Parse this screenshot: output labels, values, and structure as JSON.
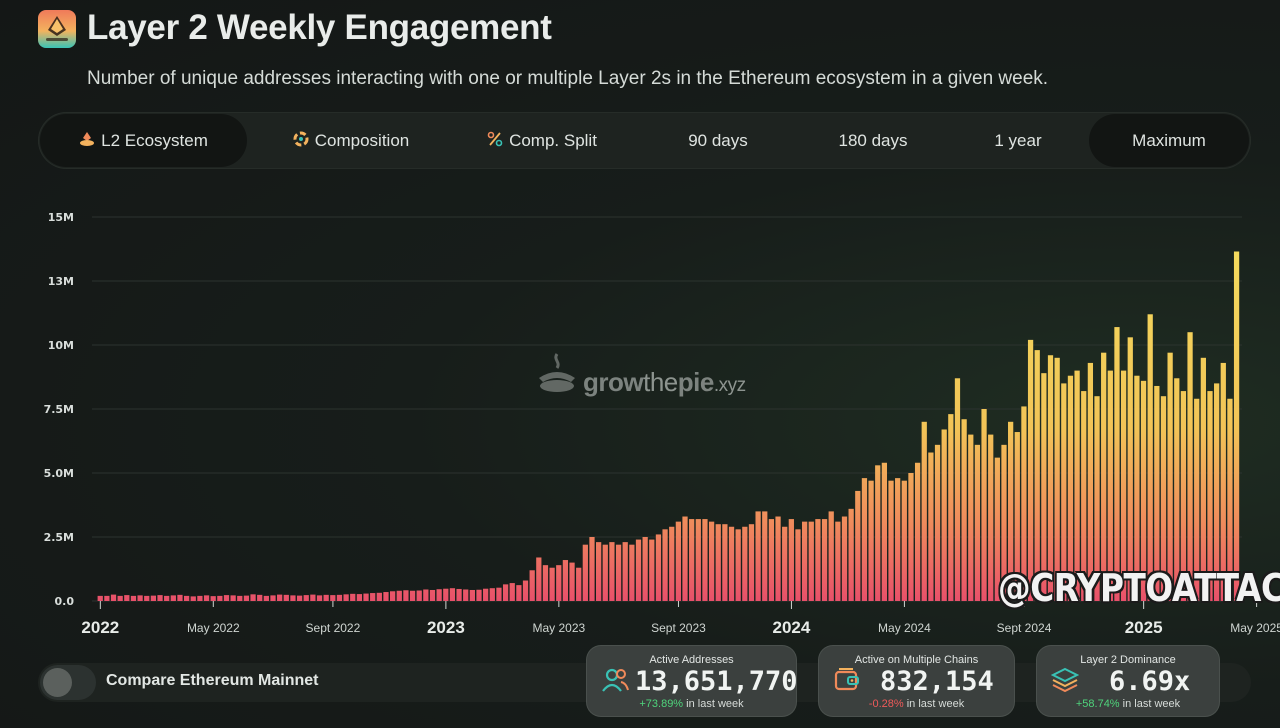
{
  "header": {
    "title": "Layer 2 Weekly Engagement",
    "subtitle": "Number of unique addresses interacting with one or multiple Layer 2s in the Ethereum ecosystem in a given week."
  },
  "tabs": [
    {
      "label": "L2 Ecosystem",
      "icon": "l2-ecosystem-icon",
      "active": true
    },
    {
      "label": "Composition",
      "icon": "composition-icon",
      "active": false
    },
    {
      "label": "Comp. Split",
      "icon": "percent-icon",
      "active": false
    },
    {
      "label": "90 days",
      "active": false
    },
    {
      "label": "180 days",
      "active": false
    },
    {
      "label": "1 year",
      "active": false
    },
    {
      "label": "Maximum",
      "active": true
    }
  ],
  "watermark": {
    "part1": "grow",
    "part2": "the",
    "part3": "pie",
    "part4": ".xyz"
  },
  "overlay_tag": "@CRYPTOATTACK",
  "compare": {
    "label": "Compare Ethereum Mainnet",
    "enabled": false
  },
  "stats": [
    {
      "label": "Active Addresses",
      "value": "13,651,770",
      "change": "+73.89%",
      "suffix": "in last week",
      "icon": "users-icon"
    },
    {
      "label": "Active on Multiple Chains",
      "value": "832,154",
      "change": "-0.28%",
      "suffix": "in last week",
      "icon": "multi-chain-wallet-icon"
    },
    {
      "label": "Layer 2 Dominance",
      "value": "6.69x",
      "change": "+58.74%",
      "suffix": "in last week",
      "icon": "layers-icon"
    }
  ],
  "colors": {
    "bar_top": "#f3d35a",
    "bar_bottom": "#e8506a",
    "grid": "#2c332f",
    "positive": "#4fd47c",
    "negative": "#ef5a5a"
  },
  "chart_data": {
    "type": "bar",
    "title": "Layer 2 Weekly Engagement",
    "ylabel": "Active addresses",
    "ylim": [
      0,
      15000000
    ],
    "y_ticks": [
      0,
      2500000,
      5000000,
      7500000,
      10000000,
      12500000,
      15000000
    ],
    "y_tick_labels": [
      "0.0",
      "2.5M",
      "5.0M",
      "7.5M",
      "10M",
      "13M",
      "15M"
    ],
    "x_range": [
      "2022-01-03",
      "2025-05-12"
    ],
    "x_ticks": [
      {
        "label": "2022",
        "week": 0,
        "major": true
      },
      {
        "label": "May 2022",
        "week": 17,
        "major": false
      },
      {
        "label": "Sept 2022",
        "week": 35,
        "major": false
      },
      {
        "label": "2023",
        "week": 52,
        "major": true
      },
      {
        "label": "May 2023",
        "week": 69,
        "major": false
      },
      {
        "label": "Sept 2023",
        "week": 87,
        "major": false
      },
      {
        "label": "2024",
        "week": 104,
        "major": true
      },
      {
        "label": "May 2024",
        "week": 121,
        "major": false
      },
      {
        "label": "Sept 2024",
        "week": 139,
        "major": false
      },
      {
        "label": "2025",
        "week": 157,
        "major": true
      },
      {
        "label": "May 2025",
        "week": 174,
        "major": false
      }
    ],
    "series": [
      {
        "name": "Active Addresses",
        "values": [
          200000,
          200000,
          250000,
          200000,
          230000,
          200000,
          220000,
          200000,
          210000,
          230000,
          200000,
          220000,
          240000,
          200000,
          180000,
          200000,
          220000,
          190000,
          200000,
          230000,
          220000,
          200000,
          210000,
          260000,
          240000,
          200000,
          220000,
          250000,
          240000,
          220000,
          210000,
          230000,
          250000,
          220000,
          240000,
          230000,
          240000,
          260000,
          280000,
          270000,
          290000,
          310000,
          320000,
          350000,
          380000,
          400000,
          420000,
          400000,
          410000,
          450000,
          430000,
          460000,
          480000,
          500000,
          470000,
          450000,
          430000,
          440000,
          480000,
          500000,
          520000,
          650000,
          700000,
          620000,
          800000,
          1200000,
          1700000,
          1400000,
          1300000,
          1400000,
          1600000,
          1500000,
          1300000,
          2200000,
          2500000,
          2300000,
          2200000,
          2300000,
          2200000,
          2300000,
          2200000,
          2400000,
          2500000,
          2400000,
          2600000,
          2800000,
          2900000,
          3100000,
          3300000,
          3200000,
          3200000,
          3200000,
          3100000,
          3000000,
          3000000,
          2900000,
          2800000,
          2900000,
          3000000,
          3500000,
          3500000,
          3200000,
          3300000,
          2900000,
          3200000,
          2800000,
          3100000,
          3100000,
          3200000,
          3200000,
          3500000,
          3100000,
          3300000,
          3600000,
          4300000,
          4800000,
          4700000,
          5300000,
          5400000,
          4700000,
          4800000,
          4700000,
          5000000,
          5400000,
          7000000,
          5800000,
          6100000,
          6700000,
          7300000,
          8700000,
          7100000,
          6500000,
          6100000,
          7500000,
          6500000,
          5600000,
          6100000,
          7000000,
          6600000,
          7600000,
          10200000,
          9800000,
          8900000,
          9600000,
          9500000,
          8500000,
          8800000,
          9000000,
          8200000,
          9300000,
          8000000,
          9700000,
          9000000,
          10700000,
          9000000,
          10300000,
          8800000,
          8600000,
          11200000,
          8400000,
          8000000,
          9700000,
          8700000,
          8200000,
          10500000,
          7900000,
          9500000,
          8200000,
          8500000,
          9300000,
          7900000,
          13651770
        ]
      }
    ]
  }
}
